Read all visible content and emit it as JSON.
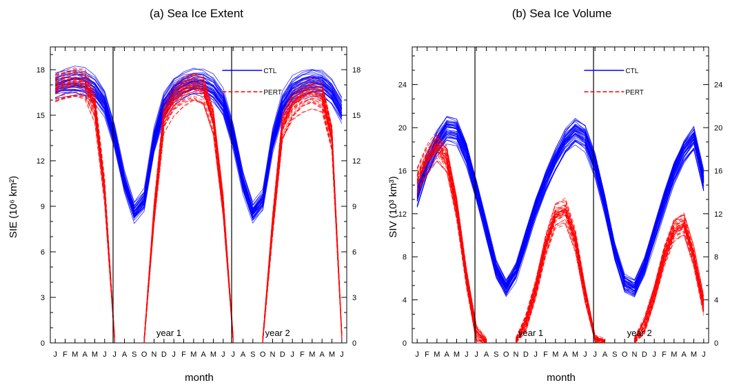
{
  "chart_data": [
    {
      "type": "line",
      "title": "(a) Sea Ice Extent",
      "xlabel": "month",
      "ylabel": "SIE (10⁶ km²)",
      "ylim": [
        0,
        19.5
      ],
      "yticks": [
        0,
        3,
        6,
        9,
        12,
        15,
        18
      ],
      "month_labels": [
        "J",
        "F",
        "M",
        "A",
        "M",
        "J",
        "J",
        "A",
        "S",
        "O",
        "N",
        "D",
        "J",
        "F",
        "M",
        "A",
        "M",
        "J",
        "J",
        "A",
        "S",
        "O",
        "N",
        "D",
        "J",
        "F",
        "M",
        "A",
        "M",
        "J"
      ],
      "x": [
        1,
        2,
        3,
        4,
        5,
        6,
        7,
        8,
        9,
        10,
        11,
        12,
        13,
        14,
        15,
        16,
        17,
        18,
        19,
        20,
        21,
        22,
        23,
        24,
        25,
        26,
        27,
        28,
        29,
        30
      ],
      "separators": [
        7,
        19
      ],
      "annotations": [
        "year 1",
        "year 2"
      ],
      "legend": {
        "position": "top-right",
        "entries": [
          "CTL",
          "PERT"
        ]
      },
      "series": [
        {
          "name": "CTL",
          "color": "#0000ff",
          "style": "solid",
          "ensemble_size": 40,
          "values": [
            16.9,
            17.1,
            17.2,
            17.1,
            16.7,
            15.8,
            13.6,
            10.6,
            8.6,
            9.4,
            13.3,
            15.6,
            16.6,
            17.0,
            17.2,
            17.1,
            16.7,
            15.8,
            13.6,
            10.6,
            8.6,
            9.4,
            13.3,
            15.6,
            16.6,
            17.0,
            17.2,
            17.1,
            16.5,
            15.3
          ]
        },
        {
          "name": "PERT",
          "color": "#ff0000",
          "style": "dashed",
          "ensemble_size": 40,
          "values": [
            16.8,
            17.0,
            17.1,
            17.0,
            15.5,
            10.0,
            0.3,
            null,
            null,
            0.2,
            8.5,
            14.8,
            16.0,
            16.6,
            16.9,
            16.6,
            14.5,
            9.0,
            0.3,
            null,
            null,
            0.2,
            7.8,
            14.2,
            15.6,
            16.2,
            16.5,
            16.2,
            13.5,
            0.5
          ]
        }
      ]
    },
    {
      "type": "line",
      "title": "(b) Sea Ice Volume",
      "xlabel": "month",
      "ylabel": "SIV (10³ km³)",
      "ylim": [
        0,
        27.5
      ],
      "yticks": [
        0,
        4,
        8,
        12,
        16,
        20,
        24
      ],
      "month_labels": [
        "J",
        "F",
        "M",
        "A",
        "M",
        "J",
        "J",
        "A",
        "S",
        "O",
        "N",
        "D",
        "J",
        "F",
        "M",
        "A",
        "M",
        "J",
        "J",
        "A",
        "S",
        "O",
        "N",
        "D",
        "J",
        "F",
        "M",
        "A",
        "M",
        "J"
      ],
      "x": [
        1,
        2,
        3,
        4,
        5,
        6,
        7,
        8,
        9,
        10,
        11,
        12,
        13,
        14,
        15,
        16,
        17,
        18,
        19,
        20,
        21,
        22,
        23,
        24,
        25,
        26,
        27,
        28,
        29,
        30
      ],
      "separators": [
        7,
        19
      ],
      "annotations": [
        "year 1",
        "year 2"
      ],
      "legend": {
        "position": "top-right",
        "entries": [
          "CTL",
          "PERT"
        ]
      },
      "series": [
        {
          "name": "CTL",
          "color": "#0000ff",
          "style": "solid",
          "ensemble_size": 40,
          "values": [
            13.5,
            16.5,
            18.5,
            19.8,
            19.6,
            17.5,
            14.2,
            10.5,
            6.8,
            5.0,
            6.5,
            9.5,
            12.5,
            15.0,
            17.0,
            18.7,
            19.6,
            19.0,
            16.5,
            12.8,
            8.5,
            5.5,
            5.0,
            7.0,
            10.0,
            13.0,
            15.8,
            17.8,
            19.0,
            15.0
          ]
        },
        {
          "name": "PERT",
          "color": "#ff0000",
          "style": "dashed",
          "ensemble_size": 40,
          "values": [
            15.0,
            17.0,
            18.2,
            17.0,
            12.5,
            6.0,
            0.8,
            0.1,
            null,
            null,
            0.2,
            1.8,
            5.0,
            9.0,
            11.8,
            12.2,
            9.5,
            4.5,
            0.4,
            0.1,
            null,
            null,
            0.2,
            1.6,
            4.5,
            8.0,
            10.5,
            11.0,
            8.0,
            3.5
          ]
        }
      ]
    }
  ]
}
